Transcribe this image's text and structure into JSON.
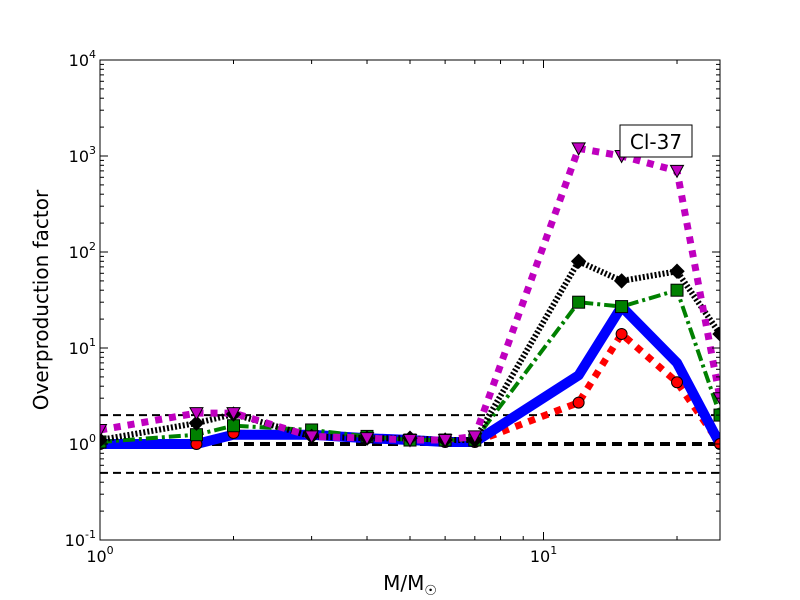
{
  "chart_data": {
    "type": "line",
    "title": "",
    "annotation": "Cl-37",
    "xlabel": "M/M",
    "xlabel_sub": "☉",
    "ylabel": "Overproduction factor",
    "xscale": "log",
    "yscale": "log",
    "xlim": [
      1,
      25
    ],
    "ylim": [
      0.1,
      10000
    ],
    "xticks": [
      {
        "value": 1,
        "base": "10",
        "exp": "0"
      },
      {
        "value": 10,
        "base": "10",
        "exp": "1"
      }
    ],
    "yticks": [
      {
        "value": 0.1,
        "base": "10",
        "exp": "-1"
      },
      {
        "value": 1,
        "base": "10",
        "exp": "0"
      },
      {
        "value": 10,
        "base": "10",
        "exp": "1"
      },
      {
        "value": 100,
        "base": "10",
        "exp": "2"
      },
      {
        "value": 1000,
        "base": "10",
        "exp": "3"
      },
      {
        "value": 10000,
        "base": "10",
        "exp": "4"
      }
    ],
    "reference_lines": [
      {
        "y": 2.0,
        "style": "thin-dashed"
      },
      {
        "y": 1.0,
        "style": "thick-dashed"
      },
      {
        "y": 0.5,
        "style": "thin-dashed"
      }
    ],
    "series": [
      {
        "color": "#ff0000",
        "dash": "dotted-thick",
        "width": 7,
        "marker": "circle",
        "x": [
          1.0,
          1.65,
          2.0,
          3.0,
          4.0,
          5.0,
          6.0,
          7.0,
          12.0,
          15.0,
          20.0,
          25.0
        ],
        "y": [
          1.0,
          1.0,
          1.3,
          1.25,
          1.15,
          1.1,
          1.05,
          1.05,
          2.7,
          14.0,
          4.4,
          1.0
        ]
      },
      {
        "color": "#0000ff",
        "dash": "solid",
        "width": 10,
        "marker": "none",
        "x": [
          1.0,
          1.65,
          2.0,
          3.0,
          4.0,
          5.0,
          6.0,
          7.0,
          12.0,
          15.0,
          20.0,
          25.0
        ],
        "y": [
          1.0,
          1.0,
          1.25,
          1.25,
          1.15,
          1.1,
          1.05,
          1.05,
          5.2,
          27.0,
          7.0,
          1.0
        ]
      },
      {
        "color": "#008000",
        "dash": "dashdot",
        "width": 4,
        "marker": "square",
        "x": [
          1.0,
          1.65,
          2.0,
          3.0,
          4.0,
          5.0,
          6.0,
          7.0,
          12.0,
          15.0,
          20.0,
          25.0
        ],
        "y": [
          1.05,
          1.25,
          1.55,
          1.4,
          1.2,
          1.1,
          1.1,
          1.1,
          30.0,
          27.0,
          40.0,
          2.0
        ]
      },
      {
        "color": "#000000",
        "dash": "dotted-fine",
        "width": 6,
        "marker": "diamond",
        "x": [
          1.0,
          1.65,
          2.0,
          3.0,
          4.0,
          5.0,
          6.0,
          7.0,
          12.0,
          15.0,
          20.0,
          25.0
        ],
        "y": [
          1.1,
          1.65,
          2.05,
          1.2,
          1.15,
          1.15,
          1.1,
          1.1,
          80.0,
          50.0,
          63.0,
          14.0
        ]
      },
      {
        "color": "#bf00bf",
        "dash": "dotted-thick",
        "width": 7,
        "marker": "triangle-down",
        "x": [
          1.0,
          1.65,
          2.0,
          3.0,
          4.0,
          5.0,
          6.0,
          7.0,
          12.0,
          15.0,
          20.0,
          25.0
        ],
        "y": [
          1.4,
          2.1,
          2.1,
          1.2,
          1.15,
          1.1,
          1.1,
          1.2,
          1200.0,
          1000.0,
          700.0,
          3.0
        ]
      }
    ]
  }
}
